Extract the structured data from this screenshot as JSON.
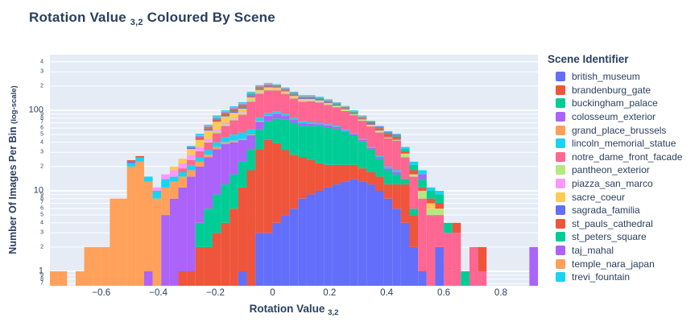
{
  "title": {
    "prefix": "Rotation Value ",
    "subscript": "3,2",
    "suffix": " Coloured By Scene"
  },
  "legend": {
    "title": "Scene Identifier"
  },
  "axes": {
    "x": {
      "title_prefix": "Rotation Value ",
      "title_subscript": "3,2"
    },
    "y": {
      "title_main": "Number Of Images Per Bin ",
      "title_note": "(log-scale)"
    }
  },
  "colors": {
    "text": "#2a3f5f",
    "plot_bg": "#e5ecf6",
    "grid": "#ffffff",
    "paper_bg": "#ffffff"
  },
  "chart_data": {
    "type": "bar",
    "mode": "stacked-histogram",
    "title": "Rotation Value 3,2 Coloured By Scene",
    "xlabel": "Rotation Value 3,2",
    "ylabel": "Number Of Images Per Bin (log-scale)",
    "legend_position": "right",
    "grid": "horizontal-only",
    "x_range": [
      -0.78,
      0.93
    ],
    "bin_start": -0.78,
    "bin_width": 0.03,
    "y_scale": "log",
    "y_log_range": [
      -0.18,
      2.69
    ],
    "y_major_ticks": [
      1,
      10,
      100
    ],
    "x_ticks": [
      {
        "v": -0.6,
        "label": "−0.6"
      },
      {
        "v": -0.4,
        "label": "−0.4"
      },
      {
        "v": -0.2,
        "label": "−0.2"
      },
      {
        "v": 0,
        "label": "0"
      },
      {
        "v": 0.2,
        "label": "0.2"
      },
      {
        "v": 0.4,
        "label": "0.4"
      },
      {
        "v": 0.6,
        "label": "0.6"
      },
      {
        "v": 0.8,
        "label": "0.8"
      }
    ],
    "series": [
      {
        "name": "british_museum",
        "color": "#636efa",
        "counts": [
          0,
          0,
          0,
          0,
          0,
          0,
          0,
          0,
          0,
          0,
          0,
          0,
          0,
          0,
          0,
          0,
          0,
          0,
          0,
          0,
          0,
          0,
          1,
          0,
          3,
          3,
          4,
          5,
          6,
          8,
          9,
          10,
          11,
          12,
          13,
          14,
          13,
          12,
          10,
          8,
          6,
          4,
          2,
          1,
          0,
          2,
          0,
          0,
          0,
          0,
          0,
          0,
          0,
          0,
          0,
          0,
          0
        ]
      },
      {
        "name": "brandenburg_gate",
        "color": "#ef553b",
        "counts": [
          0,
          0,
          0,
          0,
          0,
          0,
          0,
          0,
          0,
          0,
          0,
          0,
          0,
          0,
          0,
          1,
          1,
          2,
          2,
          3,
          4,
          6,
          10,
          18,
          30,
          40,
          35,
          27,
          22,
          18,
          15,
          12,
          10,
          9,
          8,
          7,
          6,
          5,
          5,
          4,
          6,
          8,
          3,
          0,
          0,
          0,
          0,
          0,
          0,
          0,
          0,
          0,
          0,
          0,
          0,
          0,
          0
        ]
      },
      {
        "name": "buckingham_palace",
        "color": "#00cc96",
        "counts": [
          0,
          0,
          0,
          0,
          0,
          0,
          0,
          0,
          0,
          0,
          0,
          0,
          0,
          0,
          0,
          0,
          0,
          2,
          4,
          6,
          8,
          10,
          12,
          15,
          25,
          30,
          40,
          45,
          42,
          38,
          40,
          42,
          40,
          38,
          33,
          28,
          22,
          16,
          10,
          6,
          4,
          2,
          1,
          0,
          0,
          0,
          0,
          0,
          0,
          0,
          0,
          0,
          0,
          0,
          0,
          0,
          0
        ]
      },
      {
        "name": "colosseum_exterior",
        "color": "#ab63fa",
        "counts": [
          0,
          0,
          0,
          0,
          0,
          0,
          0,
          0,
          0,
          0,
          0,
          1,
          0,
          5,
          8,
          10,
          14,
          16,
          20,
          24,
          26,
          24,
          20,
          16,
          14,
          12,
          12,
          8,
          6,
          5,
          4,
          3,
          4,
          3,
          2,
          2,
          2,
          1,
          1,
          1,
          1,
          0,
          0,
          0,
          0,
          0,
          0,
          0,
          0,
          0,
          0,
          0,
          0,
          0,
          0,
          0,
          0
        ]
      },
      {
        "name": "grand_place_brussels",
        "color": "#ffa15a",
        "counts": [
          1,
          1,
          0,
          1,
          2,
          2,
          2,
          8,
          8,
          20,
          23,
          12,
          8,
          6,
          5,
          4,
          3,
          3,
          2,
          2,
          2,
          2,
          1,
          1,
          2,
          1,
          1,
          0,
          0,
          0,
          0,
          0,
          0,
          0,
          0,
          0,
          0,
          0,
          0,
          0,
          0,
          0,
          0,
          0,
          0,
          0,
          0,
          0,
          0,
          0,
          0,
          0,
          0,
          0,
          0,
          0,
          0
        ]
      },
      {
        "name": "lincoln_memorial_statue",
        "color": "#19d3f3",
        "counts": [
          0,
          0,
          0,
          0,
          0,
          0,
          0,
          0,
          0,
          2,
          3,
          2,
          2,
          3,
          2,
          2,
          3,
          3,
          4,
          5,
          6,
          8,
          9,
          8,
          7,
          6,
          5,
          5,
          4,
          4,
          3,
          3,
          2,
          2,
          2,
          1,
          1,
          1,
          1,
          1,
          1,
          0,
          0,
          0,
          0,
          0,
          0,
          0,
          0,
          0,
          0,
          0,
          0,
          0,
          0,
          0,
          0
        ]
      },
      {
        "name": "notre_dame_front_facade",
        "color": "#ff6692",
        "counts": [
          0,
          0,
          0,
          0,
          0,
          0,
          0,
          0,
          0,
          0,
          0,
          0,
          0,
          0,
          0,
          2,
          3,
          5,
          8,
          12,
          18,
          25,
          35,
          70,
          80,
          85,
          80,
          70,
          60,
          55,
          58,
          55,
          50,
          45,
          40,
          35,
          30,
          28,
          26,
          25,
          24,
          12,
          9,
          7,
          5,
          3,
          3,
          3,
          0,
          2,
          1,
          0,
          0,
          0,
          0,
          0,
          0
        ]
      },
      {
        "name": "pantheon_exterior",
        "color": "#b6e880",
        "counts": [
          0,
          0,
          0,
          0,
          0,
          0,
          0,
          0,
          0,
          0,
          0,
          0,
          0,
          0,
          0,
          0,
          0,
          0,
          1,
          2,
          3,
          4,
          5,
          6,
          6,
          6,
          5,
          5,
          5,
          4,
          4,
          4,
          3,
          3,
          3,
          2,
          2,
          2,
          2,
          1,
          1,
          3,
          1,
          2,
          1,
          1,
          0,
          0,
          0,
          0,
          0,
          0,
          0,
          0,
          0,
          0,
          0
        ]
      },
      {
        "name": "piazza_san_marco",
        "color": "#ff97ff",
        "counts": [
          0,
          0,
          0,
          0,
          0,
          0,
          0,
          0,
          0,
          0,
          0,
          0,
          1,
          2,
          3,
          3,
          4,
          4,
          3,
          3,
          3,
          2,
          2,
          3,
          2,
          2,
          2,
          1,
          1,
          1,
          1,
          0,
          0,
          0,
          0,
          0,
          0,
          0,
          0,
          0,
          0,
          0,
          0,
          0,
          0,
          0,
          0,
          0,
          0,
          0,
          0,
          0,
          0,
          0,
          0,
          0,
          0
        ]
      },
      {
        "name": "sacre_coeur",
        "color": "#fecb52",
        "counts": [
          0,
          0,
          0,
          0,
          0,
          0,
          0,
          0,
          0,
          0,
          0,
          0,
          0,
          0,
          2,
          3,
          5,
          8,
          12,
          15,
          14,
          12,
          10,
          8,
          10,
          8,
          7,
          6,
          5,
          5,
          4,
          4,
          3,
          2,
          2,
          1,
          1,
          1,
          1,
          0,
          0,
          0,
          0,
          0,
          1,
          0,
          0,
          0,
          0,
          0,
          0,
          0,
          0,
          0,
          0,
          0,
          0
        ]
      },
      {
        "name": "sagrada_familia",
        "color": "#636efa",
        "counts": [
          0,
          0,
          0,
          0,
          0,
          0,
          0,
          0,
          0,
          1,
          0,
          0,
          0,
          0,
          0,
          0,
          1,
          1,
          2,
          2,
          3,
          3,
          3,
          4,
          4,
          4,
          3,
          3,
          3,
          3,
          3,
          2,
          2,
          2,
          2,
          2,
          1,
          1,
          1,
          1,
          1,
          0,
          0,
          0,
          0,
          0,
          0,
          0,
          0,
          0,
          0,
          0,
          0,
          0,
          0,
          0,
          0
        ]
      },
      {
        "name": "st_pauls_cathedral",
        "color": "#ef553b",
        "counts": [
          0,
          0,
          0,
          0,
          0,
          0,
          0,
          0,
          0,
          1,
          1,
          0,
          0,
          0,
          0,
          0,
          1,
          2,
          2,
          3,
          3,
          4,
          4,
          5,
          5,
          4,
          4,
          4,
          3,
          3,
          3,
          3,
          3,
          2,
          2,
          2,
          2,
          3,
          3,
          4,
          3,
          2,
          2,
          1,
          1,
          1,
          0,
          1,
          0,
          0,
          1,
          0,
          0,
          0,
          0,
          0,
          0
        ]
      },
      {
        "name": "st_peters_square",
        "color": "#00cc96",
        "counts": [
          0,
          0,
          0,
          0,
          0,
          0,
          0,
          0,
          0,
          0,
          0,
          0,
          0,
          0,
          0,
          0,
          0,
          1,
          2,
          2,
          3,
          3,
          4,
          4,
          5,
          5,
          4,
          4,
          4,
          3,
          3,
          3,
          3,
          3,
          2,
          2,
          2,
          2,
          2,
          2,
          2,
          2,
          3,
          3,
          2,
          2,
          1,
          0,
          1,
          0,
          0,
          0,
          0,
          0,
          0,
          0,
          0
        ]
      },
      {
        "name": "taj_mahal",
        "color": "#ab63fa",
        "counts": [
          0,
          0,
          0,
          0,
          0,
          0,
          0,
          0,
          0,
          0,
          0,
          0,
          0,
          0,
          0,
          0,
          0,
          1,
          1,
          2,
          2,
          3,
          3,
          4,
          4,
          4,
          3,
          3,
          3,
          2,
          2,
          2,
          2,
          2,
          1,
          1,
          1,
          1,
          1,
          1,
          1,
          0,
          0,
          2,
          0,
          0,
          0,
          0,
          0,
          0,
          0,
          0,
          0,
          0,
          0,
          0,
          2
        ]
      },
      {
        "name": "temple_nara_japan",
        "color": "#ffa15a",
        "counts": [
          0,
          0,
          0,
          0,
          0,
          0,
          0,
          0,
          0,
          0,
          0,
          0,
          0,
          0,
          0,
          0,
          0,
          1,
          1,
          2,
          2,
          2,
          3,
          3,
          3,
          3,
          2,
          2,
          2,
          2,
          2,
          1,
          1,
          1,
          1,
          1,
          1,
          0,
          0,
          0,
          0,
          0,
          0,
          0,
          0,
          0,
          0,
          0,
          0,
          0,
          0,
          0,
          0,
          0,
          0,
          0,
          0
        ]
      },
      {
        "name": "trevi_fountain",
        "color": "#19d3f3",
        "counts": [
          0,
          0,
          0,
          0,
          0,
          0,
          0,
          0,
          0,
          0,
          0,
          0,
          0,
          0,
          0,
          0,
          1,
          2,
          2,
          3,
          3,
          4,
          4,
          5,
          5,
          5,
          4,
          4,
          4,
          3,
          3,
          3,
          3,
          2,
          2,
          2,
          2,
          1,
          1,
          1,
          1,
          2,
          2,
          2,
          1,
          1,
          0,
          0,
          0,
          0,
          0,
          0,
          0,
          0,
          0,
          0,
          0
        ]
      }
    ]
  }
}
